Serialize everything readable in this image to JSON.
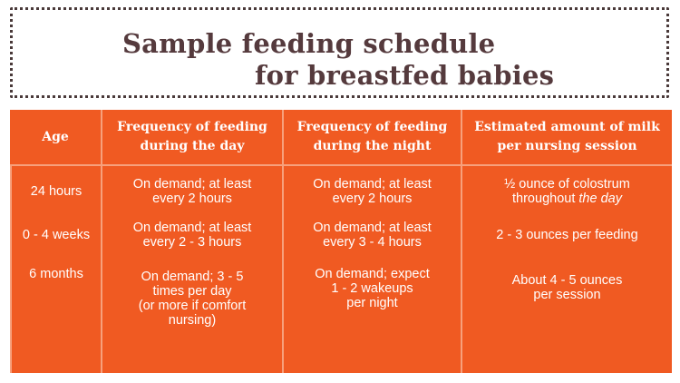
{
  "title": {
    "line1": "Sample feeding schedule",
    "line2": "for breastfed babies"
  },
  "table": {
    "headers": {
      "age": "Age",
      "day_line1": "Frequency of feeding",
      "day_line2": "during the day",
      "night_line1": "Frequency of feeding",
      "night_line2": "during the night",
      "milk_line1": "Estimated amount of milk",
      "milk_line2": "per nursing session"
    },
    "rows": [
      {
        "age": "24 hours",
        "day_line1": "On demand; at least",
        "day_line2": "every 2 hours",
        "night_line1": "On demand; at least",
        "night_line2": "every 2 hours",
        "milk_line1": "½ ounce of colostrum",
        "milk_line2_prefix": "throughout ",
        "milk_line2_emph": "the day"
      },
      {
        "age": "0 - 4 weeks",
        "day_line1": "On demand; at least",
        "day_line2": "every 2 - 3 hours",
        "night_line1": "On demand; at least",
        "night_line2": "every 3 - 4 hours",
        "milk_line1": "2 - 3 ounces per feeding"
      },
      {
        "age": "6 months",
        "day_line1": "On demand; 3 - 5",
        "day_line2": "times per day",
        "day_line3": "(or more if comfort",
        "day_line4": "nursing)",
        "night_line1": "On demand; expect",
        "night_line2": "1 - 2 wakeups",
        "night_line3": "per night",
        "milk_line1": "About 4 - 5 ounces",
        "milk_line2": "per session"
      }
    ]
  },
  "colors": {
    "table_background": "#f05a22",
    "table_divider": "#f7a07c",
    "title_text": "#553a3d",
    "title_border": "#4a3a3a"
  }
}
